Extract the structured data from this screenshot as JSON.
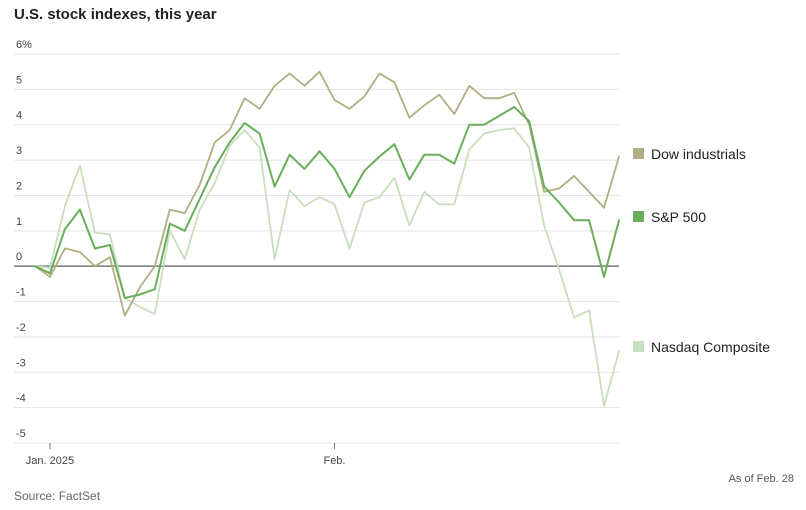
{
  "title": "U.S. stock indexes, this year",
  "as_of": "As of Feb. 28",
  "source": "Source: FactSet",
  "chart_data": {
    "type": "line",
    "ylim": [
      -5,
      6
    ],
    "yticks": [
      -5,
      -4,
      -3,
      -2,
      -1,
      0,
      1,
      2,
      3,
      4,
      5,
      6
    ],
    "ytick_labels": [
      "-5",
      "-4",
      "-3",
      "-2",
      "-1",
      "0",
      "1",
      "2",
      "3",
      "4",
      "5",
      "6%"
    ],
    "xticks": [
      {
        "index": 1,
        "label": "Jan. 2025"
      },
      {
        "index": 20,
        "label": "Feb."
      }
    ],
    "grid": true,
    "legend_placement": "right",
    "series": [
      {
        "name": "Dow industrials",
        "color": "#b1ae83",
        "values": [
          0.0,
          -0.3,
          0.5,
          0.4,
          0.0,
          0.25,
          -1.4,
          -0.6,
          0.0,
          1.6,
          1.5,
          2.3,
          3.5,
          3.85,
          4.75,
          4.45,
          5.1,
          5.45,
          5.1,
          5.5,
          4.7,
          4.45,
          4.8,
          5.45,
          5.2,
          4.2,
          4.55,
          4.85,
          4.3,
          5.1,
          4.75,
          4.75,
          4.9,
          4.0,
          2.1,
          2.2,
          2.55,
          2.1,
          1.65,
          3.1
        ]
      },
      {
        "name": "S&P 500",
        "color": "#6aad5a",
        "values": [
          0.0,
          -0.2,
          1.05,
          1.6,
          0.5,
          0.6,
          -0.9,
          -0.8,
          -0.65,
          1.2,
          1.0,
          1.9,
          2.8,
          3.5,
          4.05,
          3.75,
          2.25,
          3.15,
          2.75,
          3.25,
          2.75,
          1.95,
          2.7,
          3.1,
          3.45,
          2.45,
          3.15,
          3.15,
          2.9,
          4.0,
          4.0,
          4.25,
          4.5,
          4.1,
          2.25,
          1.8,
          1.3,
          1.3,
          -0.3,
          1.3
        ]
      },
      {
        "name": "Nasdaq Composite",
        "color": "#c8dfbd",
        "values": [
          0.0,
          -0.05,
          1.7,
          2.85,
          0.95,
          0.9,
          -0.9,
          -1.15,
          -1.35,
          1.0,
          0.2,
          1.6,
          2.35,
          3.4,
          3.85,
          3.35,
          0.2,
          2.15,
          1.7,
          1.95,
          1.75,
          0.5,
          1.8,
          1.95,
          2.5,
          1.15,
          2.1,
          1.75,
          1.75,
          3.3,
          3.75,
          3.85,
          3.9,
          3.35,
          1.15,
          -0.1,
          -1.45,
          -1.25,
          -3.95,
          -2.4
        ]
      }
    ]
  }
}
